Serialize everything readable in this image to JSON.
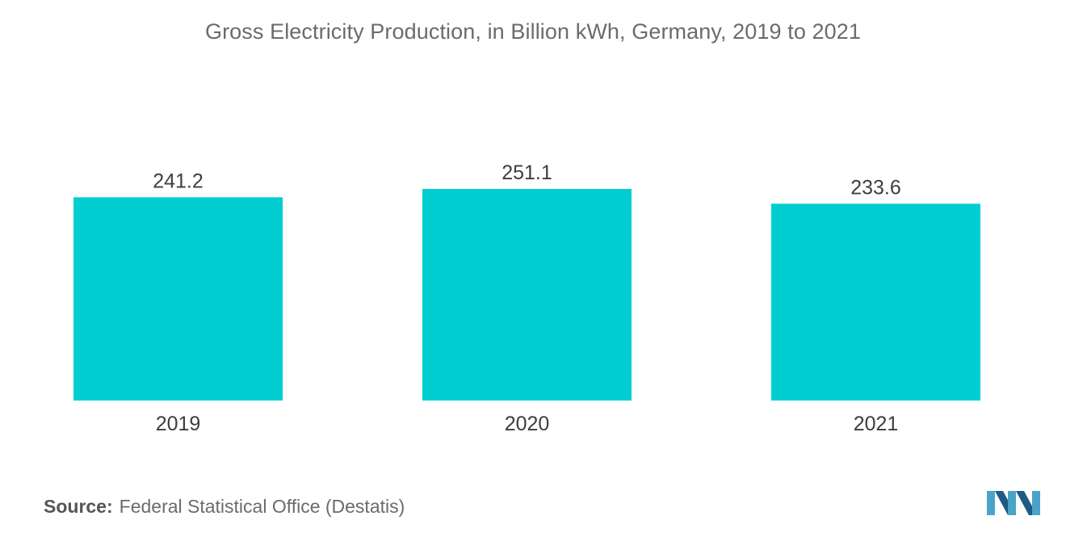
{
  "chart_data": {
    "type": "bar",
    "title": "Gross Electricity Production, in Billion kWh, Germany, 2019 to 2021",
    "categories": [
      "2019",
      "2020",
      "2021"
    ],
    "values": [
      241.2,
      251.1,
      233.6
    ],
    "value_labels": [
      "241.2",
      "251.1",
      "233.6"
    ],
    "xlabel": "",
    "ylabel": "",
    "ylim": [
      0,
      251.1
    ],
    "grid": false,
    "bar_color": "#00ced1"
  },
  "source": {
    "label": "Source:",
    "text": "Federal Statistical Office (Destatis)"
  },
  "logo": {
    "icon": "mordor-intelligence-logo",
    "colors": [
      "#4aa3c8",
      "#1f5a82"
    ]
  }
}
